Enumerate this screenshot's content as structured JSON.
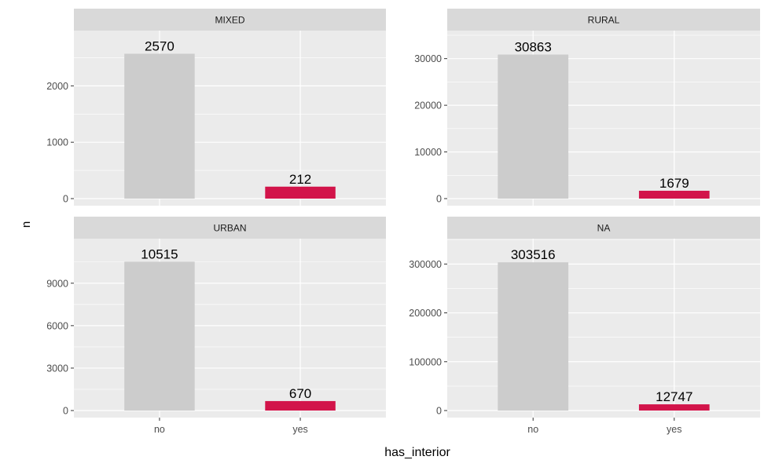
{
  "chart_data": {
    "type": "bar",
    "xlabel": "has_interior",
    "ylabel": "n",
    "categories": [
      "no",
      "yes"
    ],
    "colors": {
      "no": "#cccccc",
      "yes": "#d2144a",
      "panel_bg": "#ebebeb",
      "strip_bg": "#d9d9d9",
      "grid": "#ffffff"
    },
    "facets": [
      {
        "name": "MIXED",
        "values": [
          2570,
          212
        ],
        "yticks": [
          "0",
          "1000",
          "2000"
        ],
        "ylim": [
          0,
          2980
        ]
      },
      {
        "name": "RURAL",
        "values": [
          30863,
          1679
        ],
        "yticks": [
          "0",
          "10000",
          "20000",
          "30000"
        ],
        "ylim": [
          0,
          36000
        ]
      },
      {
        "name": "URBAN",
        "values": [
          10515,
          670
        ],
        "yticks": [
          "0",
          "3000",
          "6000",
          "9000"
        ],
        "ylim": [
          0,
          12150
        ]
      },
      {
        "name": "NA",
        "values": [
          303516,
          12747
        ],
        "yticks": [
          "0",
          "100000",
          "200000",
          "300000"
        ],
        "ylim": [
          0,
          352000
        ]
      }
    ]
  }
}
